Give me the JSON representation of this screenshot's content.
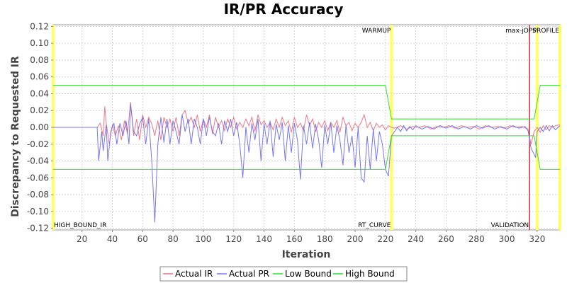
{
  "chart_data": {
    "type": "line",
    "title": "IR/PR Accuracy",
    "xlabel": "Iteration",
    "ylabel": "Discrepancy to Requested IR",
    "xlim": [
      1,
      335
    ],
    "ylim": [
      -0.122,
      0.122
    ],
    "x_ticks": [
      20,
      40,
      60,
      80,
      100,
      120,
      140,
      160,
      180,
      200,
      220,
      240,
      260,
      280,
      300,
      320
    ],
    "y_ticks": [
      0.12,
      0.1,
      0.08,
      0.06,
      0.04,
      0.02,
      0.0,
      -0.02,
      -0.04,
      -0.06,
      -0.08,
      -0.1,
      -0.12
    ],
    "y_tick_labels": [
      "0.12",
      "0.10",
      "0.08",
      "0.06",
      "0.04",
      "0.02",
      "0.00",
      "-0.02",
      "-0.04",
      "-0.06",
      "-0.08",
      "-0.10",
      "-0.12"
    ],
    "grid": true,
    "legend_position": "bottom",
    "markers": [
      {
        "x": 1,
        "label": "HIGH_BOUND_IR",
        "label_position": "bottom",
        "color": "#ffff66"
      },
      {
        "x": 224,
        "label": "WARMUP",
        "label_position": "top",
        "color": "#ffff66"
      },
      {
        "x": 224,
        "label": "RT_CURVE",
        "label_position": "bottom",
        "color": "#ffff66"
      },
      {
        "x": 315,
        "label": "VALIDATION",
        "label_position": "bottom",
        "color": "#cc3344"
      },
      {
        "x": 320,
        "label": "max-jOPS",
        "label_position": "top",
        "color": "#ffff66"
      },
      {
        "x": 335,
        "label": "PROFILE",
        "label_position": "top",
        "color": "#ffff66"
      }
    ],
    "series": [
      {
        "name": "Actual IR",
        "color": "#ee7788",
        "points": [
          [
            1,
            0
          ],
          [
            30,
            0
          ],
          [
            32,
            0.005
          ],
          [
            34,
            -0.01
          ],
          [
            35,
            0.025
          ],
          [
            36,
            0.005
          ],
          [
            38,
            -0.02
          ],
          [
            40,
            0.003
          ],
          [
            42,
            -0.01
          ],
          [
            44,
            0.002
          ],
          [
            46,
            -0.015
          ],
          [
            48,
            0.008
          ],
          [
            50,
            -0.008
          ],
          [
            52,
            0.03
          ],
          [
            54,
            -0.01
          ],
          [
            56,
            0.01
          ],
          [
            58,
            -0.015
          ],
          [
            60,
            0.015
          ],
          [
            62,
            0.0
          ],
          [
            64,
            0.012
          ],
          [
            66,
            0.004
          ],
          [
            68,
            -0.01
          ],
          [
            70,
            0.008
          ],
          [
            72,
            -0.015
          ],
          [
            74,
            0.012
          ],
          [
            76,
            0.0
          ],
          [
            78,
            0.01
          ],
          [
            80,
            -0.005
          ],
          [
            82,
            0.012
          ],
          [
            84,
            -0.01
          ],
          [
            86,
            0.015
          ],
          [
            88,
            0.02
          ],
          [
            90,
            0.005
          ],
          [
            92,
            0.012
          ],
          [
            94,
            0.0
          ],
          [
            96,
            0.015
          ],
          [
            98,
            -0.005
          ],
          [
            100,
            0.01
          ],
          [
            102,
            0.0
          ],
          [
            104,
            0.015
          ],
          [
            106,
            -0.008
          ],
          [
            108,
            0.012
          ],
          [
            110,
            0.0
          ],
          [
            112,
            0.008
          ],
          [
            114,
            -0.004
          ],
          [
            116,
            0.01
          ],
          [
            118,
            0.0
          ],
          [
            120,
            0.012
          ],
          [
            122,
            -0.002
          ],
          [
            124,
            0.006
          ],
          [
            126,
            0.0
          ],
          [
            128,
            0.01
          ],
          [
            130,
            0.002
          ],
          [
            132,
            0.012
          ],
          [
            134,
            -0.005
          ],
          [
            136,
            0.015
          ],
          [
            138,
            0.003
          ],
          [
            140,
            0.008
          ],
          [
            142,
            0.0
          ],
          [
            144,
            0.006
          ],
          [
            146,
            -0.003
          ],
          [
            148,
            0.01
          ],
          [
            150,
            0.0
          ],
          [
            152,
            0.012
          ],
          [
            154,
            0.002
          ],
          [
            156,
            0.008
          ],
          [
            158,
            -0.006
          ],
          [
            160,
            0.012
          ],
          [
            162,
            0.0
          ],
          [
            164,
            0.005
          ],
          [
            166,
            -0.004
          ],
          [
            168,
            0.015
          ],
          [
            170,
            0.002
          ],
          [
            172,
            0.01
          ],
          [
            174,
            -0.005
          ],
          [
            176,
            0.006
          ],
          [
            178,
            0.0
          ],
          [
            180,
            0.008
          ],
          [
            182,
            -0.004
          ],
          [
            184,
            0.006
          ],
          [
            186,
            0.0
          ],
          [
            188,
            0.008
          ],
          [
            190,
            -0.006
          ],
          [
            192,
            0.012
          ],
          [
            194,
            0.002
          ],
          [
            196,
            0.006
          ],
          [
            198,
            -0.004
          ],
          [
            200,
            0.005
          ],
          [
            202,
            0.0
          ],
          [
            204,
            0.006
          ],
          [
            206,
            0.015
          ],
          [
            208,
            0.0
          ],
          [
            210,
            0.006
          ],
          [
            212,
            -0.004
          ],
          [
            214,
            0.005
          ],
          [
            216,
            0.0
          ],
          [
            218,
            0.003
          ],
          [
            220,
            -0.003
          ],
          [
            222,
            0.002
          ],
          [
            224,
            0.0
          ],
          [
            226,
            -0.001
          ],
          [
            230,
            0.002
          ],
          [
            234,
            -0.002
          ],
          [
            238,
            0.001
          ],
          [
            242,
            0.0
          ],
          [
            246,
            0.002
          ],
          [
            250,
            -0.002
          ],
          [
            254,
            0.001
          ],
          [
            258,
            0.0
          ],
          [
            262,
            0.002
          ],
          [
            266,
            -0.001
          ],
          [
            270,
            0.002
          ],
          [
            274,
            0.0
          ],
          [
            278,
            0.001
          ],
          [
            282,
            -0.002
          ],
          [
            286,
            0.002
          ],
          [
            290,
            0.0
          ],
          [
            294,
            0.001
          ],
          [
            298,
            -0.001
          ],
          [
            302,
            0.002
          ],
          [
            306,
            0.0
          ],
          [
            310,
            0.001
          ],
          [
            314,
            -0.002
          ],
          [
            316,
            -0.02
          ],
          [
            318,
            -0.005
          ],
          [
            320,
            0.0
          ],
          [
            322,
            -0.006
          ],
          [
            324,
            0.002
          ],
          [
            326,
            -0.003
          ],
          [
            328,
            0.002
          ],
          [
            330,
            0.0
          ],
          [
            332,
            0.002
          ],
          [
            335,
            0.003
          ]
        ]
      },
      {
        "name": "Actual PR",
        "color": "#7777ee",
        "points": [
          [
            1,
            0
          ],
          [
            30,
            0
          ],
          [
            31,
            -0.04
          ],
          [
            33,
            -0.005
          ],
          [
            34,
            -0.028
          ],
          [
            36,
            0.003
          ],
          [
            37,
            -0.04
          ],
          [
            39,
            -0.005
          ],
          [
            41,
            0.005
          ],
          [
            43,
            -0.02
          ],
          [
            45,
            0.005
          ],
          [
            47,
            -0.01
          ],
          [
            49,
            0.008
          ],
          [
            51,
            -0.02
          ],
          [
            52,
            0.028
          ],
          [
            54,
            -0.005
          ],
          [
            56,
            -0.01
          ],
          [
            58,
            0.004
          ],
          [
            60,
            0.012
          ],
          [
            62,
            -0.02
          ],
          [
            64,
            0.01
          ],
          [
            66,
            -0.04
          ],
          [
            68,
            -0.113
          ],
          [
            70,
            -0.02
          ],
          [
            72,
            0.012
          ],
          [
            74,
            -0.018
          ],
          [
            76,
            0.01
          ],
          [
            78,
            -0.02
          ],
          [
            80,
            0.008
          ],
          [
            82,
            -0.005
          ],
          [
            84,
            -0.02
          ],
          [
            86,
            0.015
          ],
          [
            88,
            -0.005
          ],
          [
            90,
            0.01
          ],
          [
            92,
            -0.02
          ],
          [
            94,
            0.01
          ],
          [
            96,
            0.0
          ],
          [
            98,
            -0.02
          ],
          [
            100,
            0.01
          ],
          [
            102,
            -0.01
          ],
          [
            104,
            0.012
          ],
          [
            106,
            -0.005
          ],
          [
            108,
            -0.01
          ],
          [
            110,
            0.005
          ],
          [
            112,
            -0.02
          ],
          [
            114,
            0.008
          ],
          [
            116,
            -0.005
          ],
          [
            118,
            0.01
          ],
          [
            120,
            -0.01
          ],
          [
            122,
            0.006
          ],
          [
            124,
            -0.02
          ],
          [
            126,
            -0.06
          ],
          [
            128,
            0.0
          ],
          [
            130,
            -0.03
          ],
          [
            132,
            0.005
          ],
          [
            134,
            -0.015
          ],
          [
            136,
            0.01
          ],
          [
            138,
            -0.04
          ],
          [
            140,
            0.005
          ],
          [
            142,
            -0.02
          ],
          [
            144,
            0.008
          ],
          [
            146,
            -0.035
          ],
          [
            148,
            0.004
          ],
          [
            150,
            -0.015
          ],
          [
            152,
            0.006
          ],
          [
            154,
            -0.04
          ],
          [
            156,
            0.002
          ],
          [
            158,
            -0.03
          ],
          [
            160,
            0.005
          ],
          [
            162,
            -0.015
          ],
          [
            164,
            -0.062
          ],
          [
            166,
            0.002
          ],
          [
            168,
            -0.02
          ],
          [
            170,
            0.006
          ],
          [
            172,
            -0.025
          ],
          [
            174,
            0.004
          ],
          [
            176,
            -0.015
          ],
          [
            178,
            -0.048
          ],
          [
            180,
            0.003
          ],
          [
            182,
            -0.02
          ],
          [
            184,
            0.005
          ],
          [
            186,
            -0.03
          ],
          [
            188,
            0.002
          ],
          [
            190,
            -0.015
          ],
          [
            192,
            -0.045
          ],
          [
            194,
            0.003
          ],
          [
            196,
            -0.03
          ],
          [
            198,
            -0.01
          ],
          [
            200,
            -0.048
          ],
          [
            202,
            0.0
          ],
          [
            204,
            -0.06
          ],
          [
            206,
            -0.065
          ],
          [
            208,
            -0.01
          ],
          [
            210,
            -0.05
          ],
          [
            212,
            -0.002
          ],
          [
            214,
            -0.04
          ],
          [
            216,
            -0.005
          ],
          [
            218,
            -0.02
          ],
          [
            220,
            -0.05
          ],
          [
            222,
            -0.058
          ],
          [
            224,
            -0.01
          ],
          [
            226,
            -0.005
          ],
          [
            228,
            0.0
          ],
          [
            230,
            -0.005
          ],
          [
            232,
            0.002
          ],
          [
            234,
            -0.004
          ],
          [
            236,
            0.001
          ],
          [
            238,
            -0.003
          ],
          [
            240,
            0.002
          ],
          [
            244,
            -0.002
          ],
          [
            248,
            0.001
          ],
          [
            252,
            -0.002
          ],
          [
            256,
            0.002
          ],
          [
            260,
            -0.001
          ],
          [
            264,
            0.002
          ],
          [
            268,
            -0.002
          ],
          [
            272,
            0.001
          ],
          [
            276,
            -0.002
          ],
          [
            280,
            0.002
          ],
          [
            284,
            -0.001
          ],
          [
            288,
            0.002
          ],
          [
            292,
            -0.002
          ],
          [
            296,
            0.001
          ],
          [
            300,
            -0.002
          ],
          [
            304,
            0.002
          ],
          [
            308,
            -0.001
          ],
          [
            312,
            0.001
          ],
          [
            314,
            -0.004
          ],
          [
            316,
            -0.025
          ],
          [
            318,
            -0.032
          ],
          [
            319,
            -0.036
          ],
          [
            320,
            -0.005
          ],
          [
            322,
            0.0
          ],
          [
            324,
            -0.005
          ],
          [
            326,
            0.002
          ],
          [
            328,
            -0.004
          ],
          [
            330,
            0.002
          ],
          [
            332,
            -0.003
          ],
          [
            335,
            0.002
          ]
        ]
      },
      {
        "name": "Low Bound",
        "color": "#33dd33",
        "points": [
          [
            1,
            -0.05
          ],
          [
            220,
            -0.05
          ],
          [
            224,
            -0.01
          ],
          [
            318,
            -0.01
          ],
          [
            322,
            -0.05
          ],
          [
            335,
            -0.05
          ]
        ]
      },
      {
        "name": "High Bound",
        "color": "#33dd33",
        "points": [
          [
            1,
            0.05
          ],
          [
            220,
            0.05
          ],
          [
            224,
            0.01
          ],
          [
            318,
            0.01
          ],
          [
            322,
            0.05
          ],
          [
            335,
            0.05
          ]
        ]
      }
    ]
  }
}
